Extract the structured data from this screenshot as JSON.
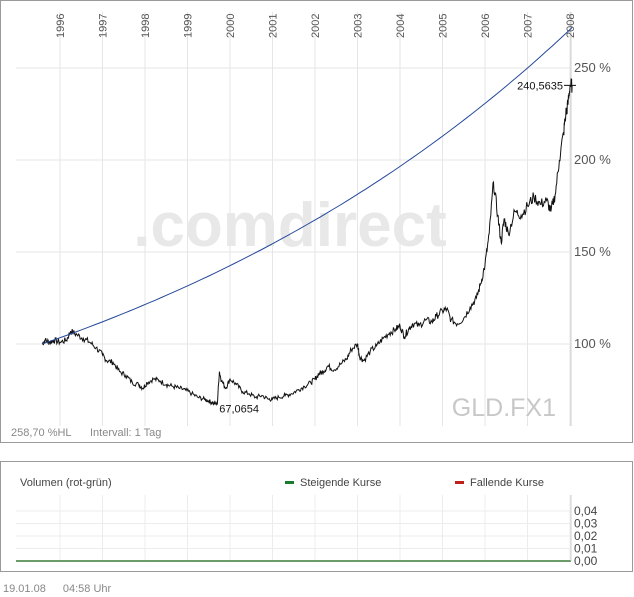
{
  "chart_data": [
    {
      "type": "line",
      "title": "",
      "xlabel": "",
      "ylabel": "",
      "x_ticks": [
        "1996",
        "1997",
        "1998",
        "1999",
        "2000",
        "2001",
        "2002",
        "2003",
        "2004",
        "2005",
        "2006",
        "2007",
        "2008"
      ],
      "y_ticks": [
        "100 %",
        "150 %",
        "200 %",
        "250 %"
      ],
      "ylim": [
        62,
        272
      ],
      "xlim": [
        1995.58,
        2008.05
      ],
      "grid": true,
      "watermark": ".comdirect",
      "symbol": "GLD.FX1",
      "info_left": "258,70 %HL",
      "info_interval": "Intervall: 1 Tag",
      "annotations": [
        {
          "text": "240,5635",
          "x": 2008.0,
          "y": 240.56
        },
        {
          "text": "67,0654",
          "x": 1999.7,
          "y": 67.07
        }
      ],
      "series": [
        {
          "color": "#111111",
          "x": [
            1995.58,
            1995.65,
            1995.75,
            1995.85,
            1996.0,
            1996.15,
            1996.25,
            1996.4,
            1996.55,
            1996.7,
            1996.85,
            1997.0,
            1997.1,
            1997.25,
            1997.4,
            1997.55,
            1997.7,
            1997.85,
            1997.95,
            1998.05,
            1998.2,
            1998.35,
            1998.5,
            1998.65,
            1998.8,
            1998.95,
            1999.1,
            1999.25,
            1999.4,
            1999.5,
            1999.6,
            1999.7,
            1999.75,
            1999.8,
            1999.9,
            2000.0,
            2000.15,
            2000.3,
            2000.45,
            2000.6,
            2000.75,
            2000.9,
            2001.0,
            2001.15,
            2001.3,
            2001.45,
            2001.6,
            2001.75,
            2001.9,
            2002.0,
            2002.1,
            2002.2,
            2002.3,
            2002.45,
            2002.6,
            2002.75,
            2002.85,
            2003.0,
            2003.05,
            2003.15,
            2003.3,
            2003.45,
            2003.6,
            2003.75,
            2003.9,
            2004.0,
            2004.1,
            2004.2,
            2004.3,
            2004.45,
            2004.6,
            2004.75,
            2004.85,
            2005.0,
            2005.1,
            2005.2,
            2005.35,
            2005.5,
            2005.65,
            2005.8,
            2005.9,
            2006.0,
            2006.1,
            2006.2,
            2006.3,
            2006.38,
            2006.45,
            2006.55,
            2006.7,
            2006.85,
            2007.0,
            2007.15,
            2007.3,
            2007.45,
            2007.55,
            2007.65,
            2007.75,
            2007.85,
            2007.9,
            2007.95,
            2008.0,
            2008.05
          ],
          "values": [
            100,
            102,
            101,
            102,
            101,
            102,
            107,
            105,
            103,
            101,
            98,
            94,
            91,
            90,
            85,
            83,
            79,
            78,
            76,
            79,
            81,
            80,
            78,
            77,
            76,
            75,
            73,
            71,
            70,
            69,
            68,
            67.07,
            85,
            80,
            76,
            81,
            78,
            74,
            73,
            71,
            72,
            70,
            70,
            71,
            72,
            73,
            75,
            77,
            79,
            81,
            84,
            85,
            88,
            86,
            89,
            92,
            97,
            100,
            93,
            91,
            96,
            99,
            103,
            106,
            108,
            110,
            104,
            108,
            111,
            110,
            113,
            112,
            115,
            118,
            119,
            113,
            111,
            114,
            120,
            125,
            133,
            143,
            160,
            188,
            170,
            155,
            168,
            160,
            172,
            170,
            175,
            180,
            176,
            178,
            172,
            181,
            200,
            215,
            225,
            230,
            240.56,
            240.56
          ]
        },
        {
          "color": "#24489a",
          "x": [
            1995.58,
            2008.05
          ],
          "values": [
            100,
            272
          ],
          "curve": "exponential"
        }
      ]
    },
    {
      "type": "bar",
      "title": "",
      "volume_label": "Volumen (rot-grün)",
      "legend": [
        {
          "label": "Steigende Kurse",
          "color": "#1a7a2e"
        },
        {
          "label": "Fallende Kurse",
          "color": "#c0201a"
        }
      ],
      "y_ticks": [
        "0,04",
        "0,03",
        "0,02",
        "0,01",
        "0,00"
      ],
      "ylim": [
        0,
        0.045
      ],
      "values": []
    }
  ],
  "footer": {
    "date": "19.01.08",
    "time": "04:58 Uhr"
  }
}
